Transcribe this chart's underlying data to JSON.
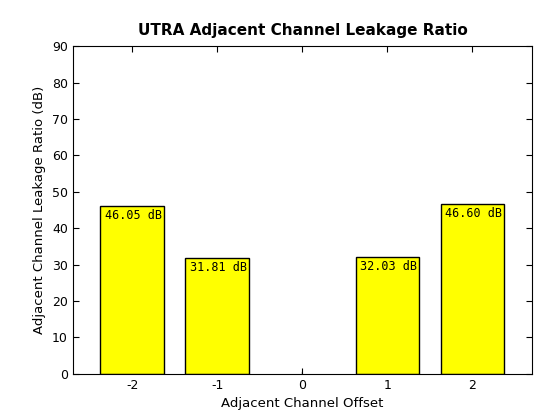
{
  "title": "UTRA Adjacent Channel Leakage Ratio",
  "xlabel": "Adjacent Channel Offset",
  "ylabel": "Adjacent Channel Leakage Ratio (dB)",
  "x_positions": [
    -2,
    -1,
    0,
    1,
    2
  ],
  "x_labels": [
    "-2",
    "-1",
    "0",
    "1",
    "2"
  ],
  "bar_positions": [
    -2,
    -1,
    1,
    2
  ],
  "bar_values": [
    46.05,
    31.81,
    32.03,
    46.6
  ],
  "bar_labels": [
    "46.05 dB",
    "31.81 dB",
    "32.03 dB",
    "46.60 dB"
  ],
  "bar_color": "#ffff00",
  "bar_edgecolor": "#000000",
  "bar_width": 0.75,
  "ylim": [
    0,
    90
  ],
  "xlim": [
    -2.7,
    2.7
  ],
  "yticks": [
    0,
    10,
    20,
    30,
    40,
    50,
    60,
    70,
    80,
    90
  ],
  "title_fontsize": 11,
  "label_fontsize": 9.5,
  "tick_fontsize": 9,
  "annotation_fontsize": 8.5,
  "background_color": "#ffffff"
}
